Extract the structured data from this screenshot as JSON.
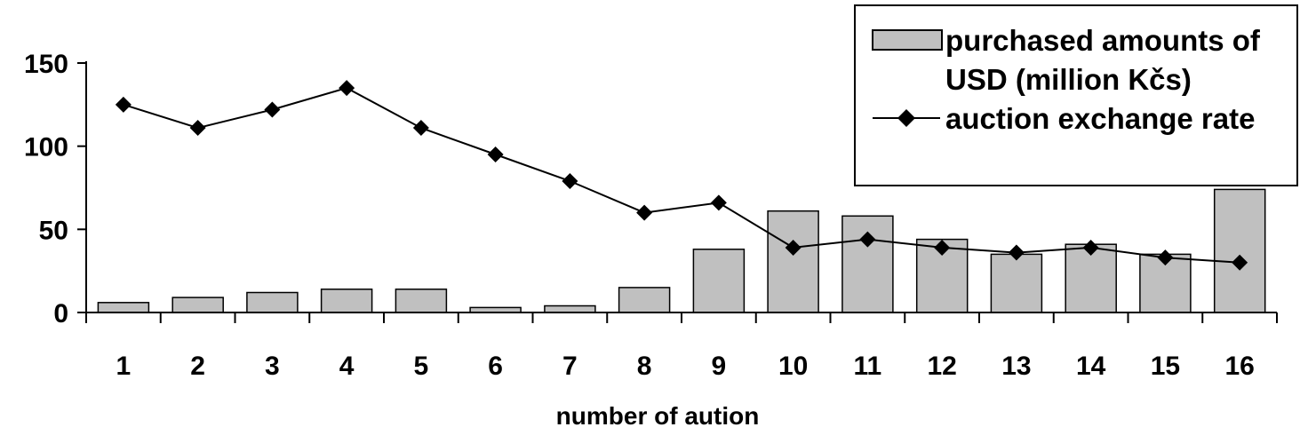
{
  "chart_data": {
    "type": "bar",
    "title": "",
    "xlabel": "number of aution",
    "ylabel": "",
    "ylim": [
      0,
      150
    ],
    "yticks": [
      0,
      50,
      100,
      150
    ],
    "categories": [
      "1",
      "2",
      "3",
      "4",
      "5",
      "6",
      "7",
      "8",
      "9",
      "10",
      "11",
      "12",
      "13",
      "14",
      "15",
      "16"
    ],
    "series": [
      {
        "name": "purchased amounts of USD (million Kčs)",
        "name_lines": [
          "purchased amounts of",
          "USD (million Kčs)"
        ],
        "kind": "bar",
        "color": "#c0c0c0",
        "values": [
          6,
          9,
          12,
          14,
          14,
          3,
          4,
          15,
          38,
          61,
          58,
          44,
          35,
          41,
          35,
          74
        ]
      },
      {
        "name": "auction exchange rate",
        "kind": "line",
        "marker": "diamond",
        "color": "#000000",
        "values": [
          125,
          111,
          122,
          135,
          111,
          95,
          79,
          60,
          66,
          39,
          44,
          39,
          36,
          39,
          33,
          30
        ]
      }
    ],
    "legend_position": "top-right",
    "grid": false
  }
}
